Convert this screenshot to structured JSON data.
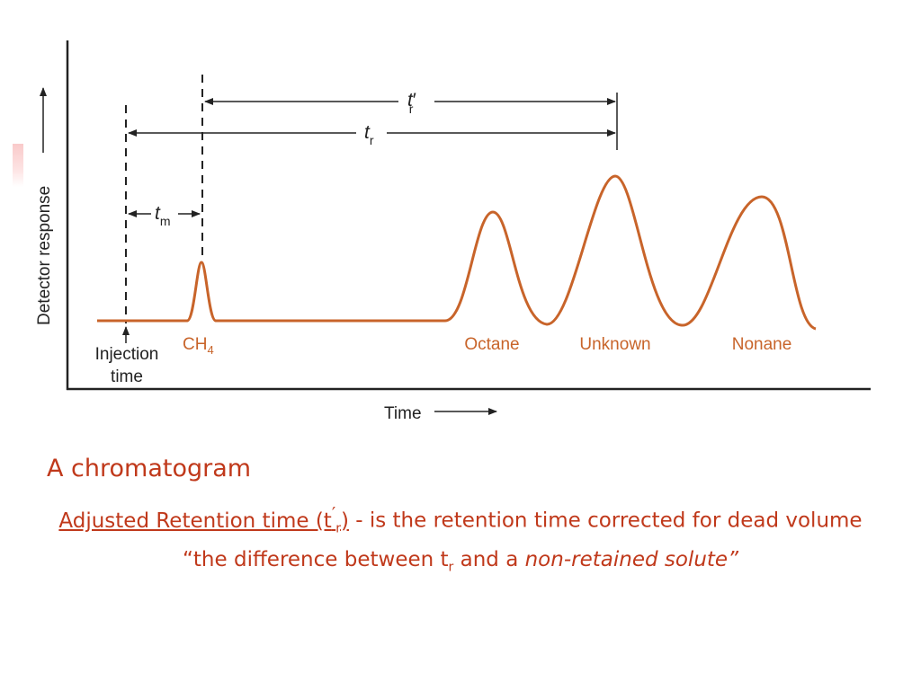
{
  "figure": {
    "y_axis_label": "Detector response",
    "x_axis_label": "Time",
    "injection_label_line1": "Injection",
    "injection_label_line2": "time",
    "tr_prime": {
      "symbol": "t",
      "prime": "′",
      "sub": "r"
    },
    "tr": {
      "symbol": "t",
      "sub": "r"
    },
    "tm": {
      "symbol": "t",
      "sub": "m"
    },
    "peaks": [
      {
        "label": "CH",
        "sub": "4"
      },
      {
        "label": "Octane",
        "sub": ""
      },
      {
        "label": "Unknown",
        "sub": ""
      },
      {
        "label": "Nonane",
        "sub": ""
      }
    ],
    "colors": {
      "trace": "#c8642a",
      "axis": "#222222",
      "label": "#c0391b"
    }
  },
  "caption": {
    "title": "A chromatogram",
    "term_prefix": "Adjusted Retention time (t",
    "term_prime": "′",
    "term_sub": "r",
    "term_suffix": ")",
    "definition_part1": "  - is the retention time corrected for dead volume “the difference between t",
    "definition_sub": "r",
    "definition_part2": " and a ",
    "definition_italic": "non-retained solute”"
  }
}
